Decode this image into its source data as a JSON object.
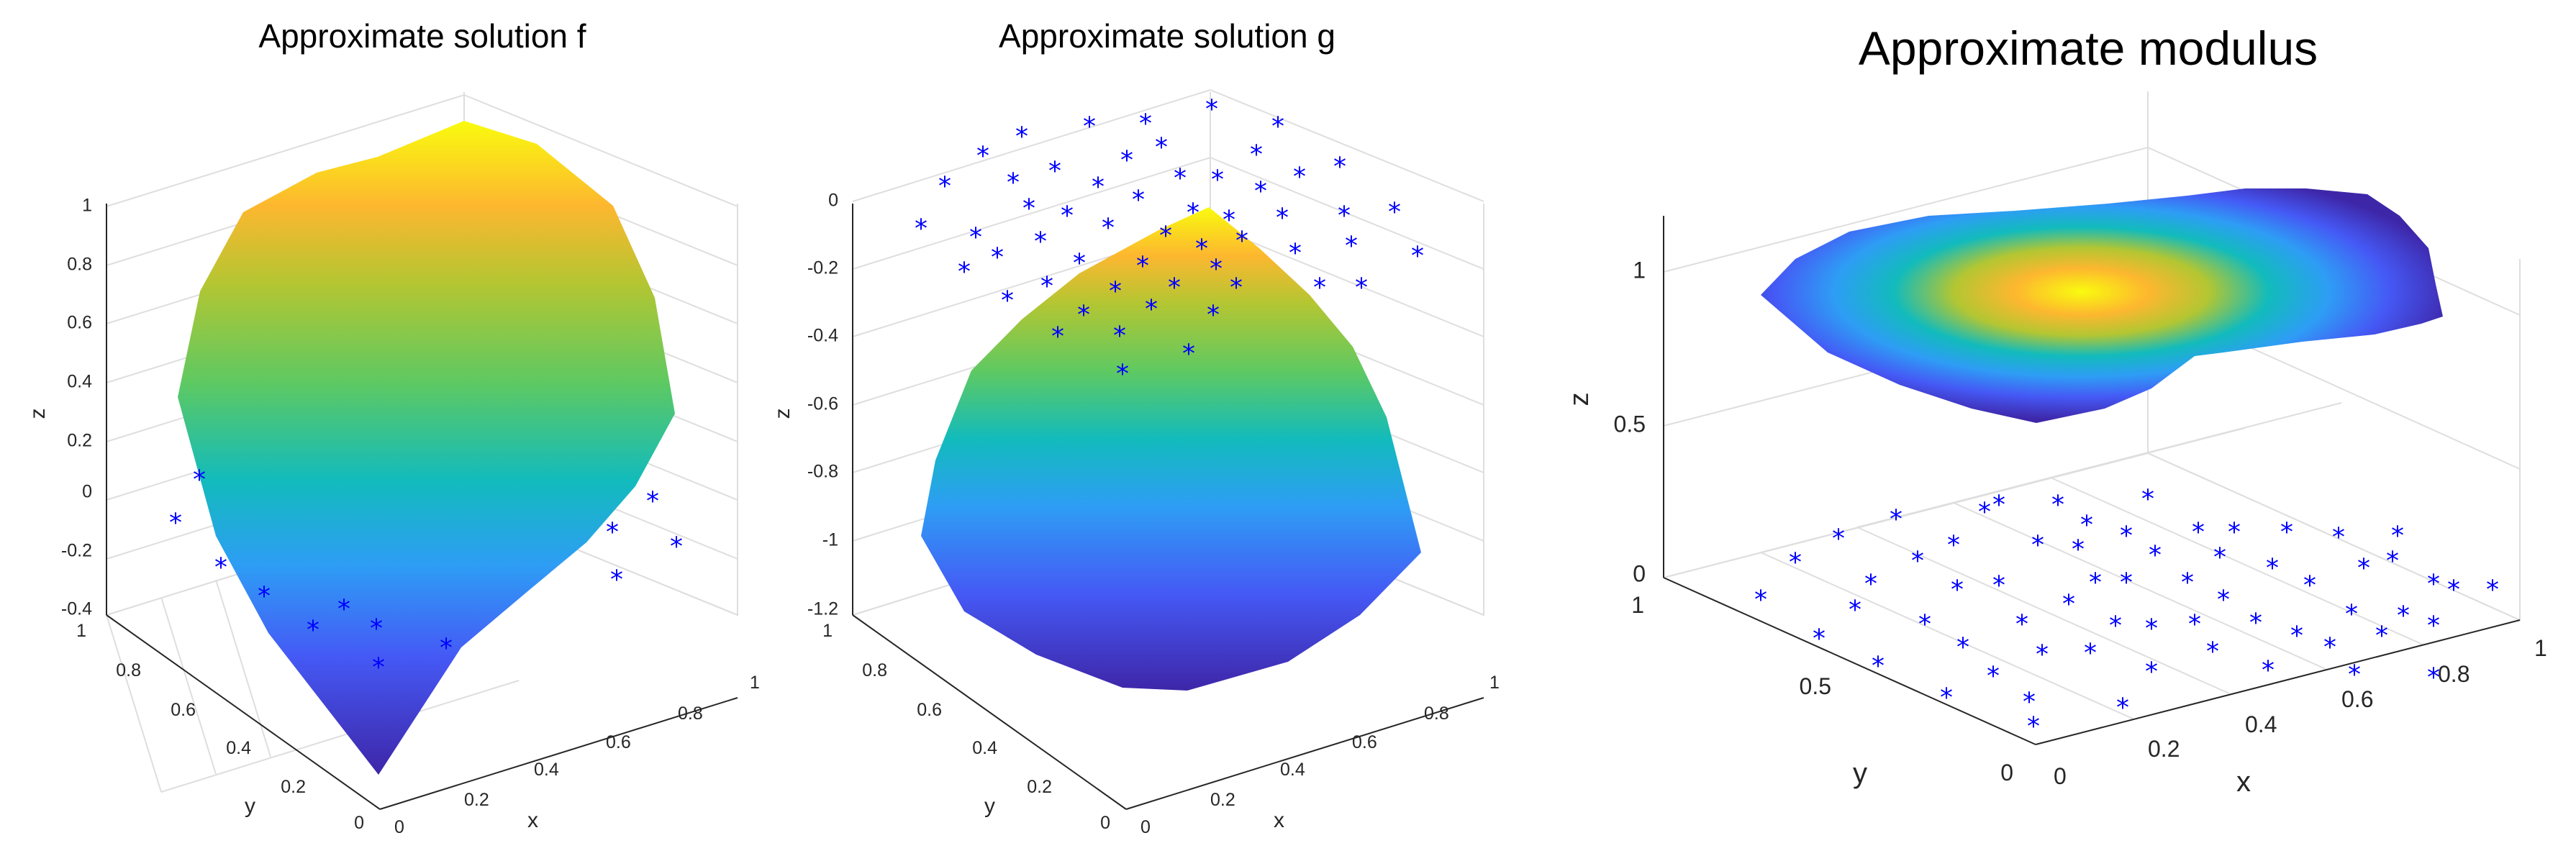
{
  "chart_data": [
    {
      "type": "surface3d",
      "title": "Approximate solution f",
      "xlabel": "x",
      "ylabel": "y",
      "zlabel": "z",
      "xlim": [
        0,
        1
      ],
      "ylim": [
        0,
        1
      ],
      "zlim": [
        -0.4,
        1
      ],
      "xticks": [
        "0",
        "0.2",
        "0.4",
        "0.6",
        "0.8",
        "1"
      ],
      "yticks": [
        "0",
        "0.2",
        "0.4",
        "0.6",
        "0.8",
        "1"
      ],
      "zticks": [
        "-0.4",
        "-0.2",
        "0",
        "0.2",
        "0.4",
        "0.6",
        "0.8",
        "1"
      ],
      "grid": true,
      "colormap": [
        "#3e26a8",
        "#4559f5",
        "#2e9df5",
        "#12bbbc",
        "#5ec962",
        "#b3c632",
        "#fdb72f",
        "#f9fb0e"
      ]
    },
    {
      "type": "surface3d",
      "title": "Approximate solution g",
      "xlabel": "x",
      "ylabel": "y",
      "zlabel": "z",
      "xlim": [
        0,
        1
      ],
      "ylim": [
        0,
        1
      ],
      "zlim": [
        -1.2,
        0
      ],
      "xticks": [
        "0",
        "0.2",
        "0.4",
        "0.6",
        "0.8",
        "1"
      ],
      "yticks": [
        "0",
        "0.2",
        "0.4",
        "0.6",
        "0.8",
        "1"
      ],
      "zticks": [
        "-1.2",
        "-1",
        "-0.8",
        "-0.6",
        "-0.4",
        "-0.2",
        "0"
      ],
      "grid": true,
      "colormap": [
        "#3e26a8",
        "#4559f5",
        "#2e9df5",
        "#12bbbc",
        "#5ec962",
        "#b3c632",
        "#fdb72f",
        "#f9fb0e"
      ]
    },
    {
      "type": "surface3d",
      "title": "Approximate modulus",
      "xlabel": "x",
      "ylabel": "y",
      "zlabel": "z",
      "xlim": [
        0,
        1
      ],
      "ylim": [
        0,
        1
      ],
      "zlim": [
        0,
        1.2
      ],
      "xticks": [
        "0",
        "0.2",
        "0.4",
        "0.6",
        "0.8",
        "1"
      ],
      "yticks": [
        "0",
        "0.5",
        "1"
      ],
      "zticks": [
        "0",
        "0.5",
        "1"
      ],
      "grid": true,
      "surface_level": 1.0,
      "colormap": [
        "#3e26a8",
        "#4559f5",
        "#2e9df5",
        "#12bbbc",
        "#5ec962",
        "#b3c632",
        "#fdb72f",
        "#f9fb0e"
      ]
    }
  ]
}
